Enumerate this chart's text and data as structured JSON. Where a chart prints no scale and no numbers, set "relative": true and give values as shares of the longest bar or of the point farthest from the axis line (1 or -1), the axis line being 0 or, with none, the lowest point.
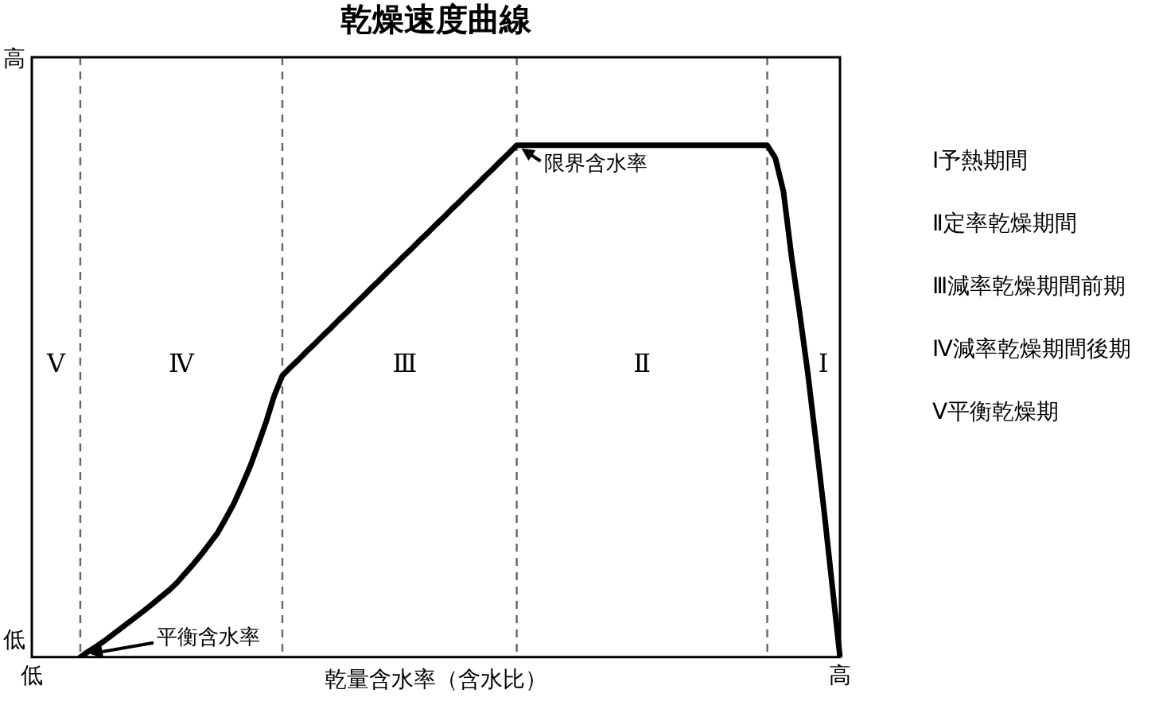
{
  "chart_data": {
    "type": "line",
    "title": "乾燥速度曲線",
    "xlabel": "乾量含水率（含水比）",
    "relative": true,
    "categories": [
      "低",
      null,
      null,
      null,
      null,
      null,
      null,
      null,
      null,
      null,
      null,
      null,
      null,
      null,
      null,
      null,
      null,
      null,
      null,
      null,
      null,
      null,
      null,
      null,
      null,
      null,
      null,
      null,
      null,
      null,
      null,
      null,
      null,
      null,
      null,
      null,
      null,
      null,
      null,
      null,
      null,
      null,
      null,
      null,
      null,
      null,
      null,
      null,
      null,
      null,
      null,
      null,
      null,
      null,
      null,
      null,
      null,
      null,
      null,
      null,
      null,
      null,
      null,
      null,
      null,
      null,
      null,
      null,
      null,
      null,
      null,
      null,
      null,
      null,
      null,
      null,
      null,
      null,
      null,
      null,
      null,
      null,
      null,
      null,
      null,
      null,
      null,
      null,
      null,
      null,
      null,
      null,
      null,
      null,
      null,
      null,
      null,
      null,
      null,
      null,
      "高"
    ],
    "series": [
      {
        "color": "#000000",
        "values": [
          null,
          null,
          null,
          null,
          null,
          null,
          0,
          0.011,
          0.021,
          0.032,
          0.044,
          0.056,
          0.068,
          0.08,
          0.092,
          0.105,
          0.118,
          0.131,
          0.146,
          0.164,
          0.182,
          0.201,
          0.222,
          0.243,
          0.271,
          0.3,
          0.335,
          0.372,
          0.415,
          0.46,
          0.511,
          0.55,
          0.566,
          0.581,
          0.597,
          0.612,
          0.628,
          0.643,
          0.659,
          0.674,
          0.69,
          0.705,
          0.721,
          0.736,
          0.752,
          0.767,
          0.783,
          0.798,
          0.814,
          0.829,
          0.845,
          0.86,
          0.876,
          0.891,
          0.907,
          0.922,
          0.938,
          0.953,
          0.969,
          0.984,
          1,
          1,
          1,
          1,
          1,
          1,
          1,
          1,
          1,
          1,
          1,
          1,
          1,
          1,
          1,
          1,
          1,
          1,
          1,
          1,
          1,
          1,
          1,
          1,
          1,
          1,
          1,
          1,
          1,
          1,
          1,
          1,
          0.975,
          0.91,
          0.783,
          0.673,
          0.557,
          0.425,
          0.29,
          0.145,
          0
        ]
      }
    ],
    "annotations": [
      "限界含水率",
      "平衡含水率",
      "Ⅴ",
      "Ⅳ",
      "Ⅲ",
      "Ⅱ",
      "Ⅰ",
      "高",
      "低",
      "Ⅰ予熱期間",
      "Ⅱ定率乾燥期間",
      "Ⅲ減率乾燥期間前期",
      "Ⅳ減率乾燥期間後期",
      "Ⅴ平衡乾燥期"
    ]
  }
}
